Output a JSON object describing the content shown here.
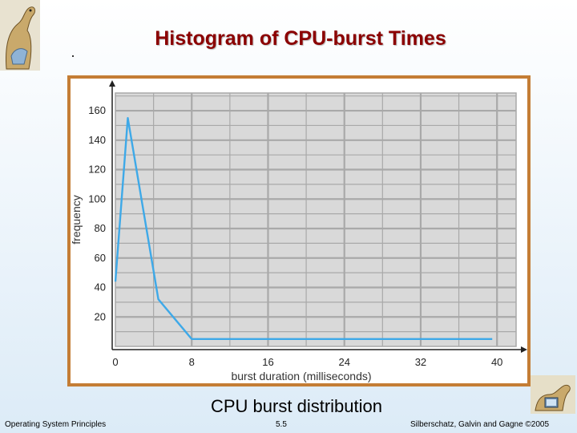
{
  "slide": {
    "title": "Histogram of CPU-burst Times",
    "caption": "CPU burst distribution",
    "footer_left": "Operating System Principles",
    "footer_center": "5.5",
    "footer_right": "Silberschatz, Galvin and Gagne ©2005"
  },
  "colors": {
    "title": "#8b0000",
    "frame": "#c47d35",
    "plot_bg": "#d9d9d9",
    "grid": "#a9a9a9",
    "line": "#3ea9e8"
  },
  "icons": [
    "dinosaur-logo-icon",
    "dinosaur-computer-icon"
  ],
  "chart_data": {
    "type": "line",
    "title": "",
    "xlabel": "burst duration (milliseconds)",
    "ylabel": "frequency",
    "xlim": [
      0,
      42
    ],
    "ylim": [
      0,
      172
    ],
    "x_ticks": [
      0,
      8,
      16,
      24,
      32,
      40
    ],
    "y_ticks": [
      20,
      40,
      60,
      80,
      100,
      120,
      140,
      160
    ],
    "grid": true,
    "series": [
      {
        "x": [
          0,
          1.3,
          4.5,
          8,
          39.5
        ],
        "y": [
          44,
          155,
          32,
          5,
          5
        ]
      }
    ]
  }
}
